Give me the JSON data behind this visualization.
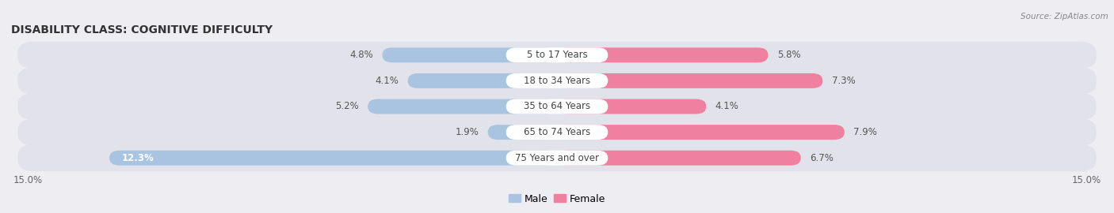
{
  "title": "DISABILITY CLASS: COGNITIVE DIFFICULTY",
  "source": "Source: ZipAtlas.com",
  "categories": [
    "5 to 17 Years",
    "18 to 34 Years",
    "35 to 64 Years",
    "65 to 74 Years",
    "75 Years and over"
  ],
  "male_values": [
    4.8,
    4.1,
    5.2,
    1.9,
    12.3
  ],
  "female_values": [
    5.8,
    7.3,
    4.1,
    7.9,
    6.7
  ],
  "male_color": "#a8c4e0",
  "female_color": "#f080a0",
  "male_label": "Male",
  "female_label": "Female",
  "xlim": 15.0,
  "x_tick_left": "15.0%",
  "x_tick_right": "15.0%",
  "background_color": "#ededf2",
  "bar_bg_color": "#e2e2ea",
  "title_fontsize": 10,
  "label_fontsize": 8.5,
  "value_fontsize": 8.5
}
